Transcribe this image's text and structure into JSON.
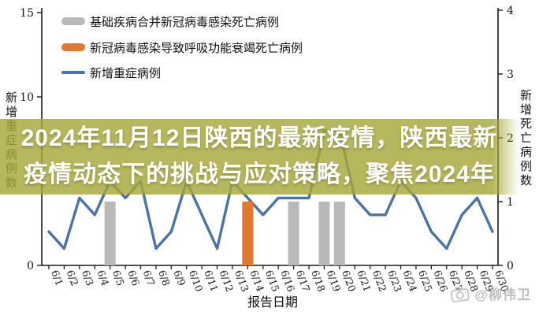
{
  "banner": {
    "line1": "2024年11月12日陕西的最新疫情，陕西最新",
    "line2": "疫情动态下的挑战与应对策略，聚焦2024年"
  },
  "watermark": {
    "icon": "weibo-camera-icon",
    "handle": "@柳伟卫"
  },
  "chart_data": {
    "type": "line+bar",
    "title": "",
    "xlabel": "报告日期",
    "legend_position": "top-left",
    "grid": false,
    "x": [
      "6/1",
      "6/2",
      "6/3",
      "6/4",
      "6/5",
      "6/6",
      "6/7",
      "6/8",
      "6/9",
      "6/10",
      "6/11",
      "6/12",
      "6/13",
      "6/14",
      "6/15",
      "6/16",
      "6/17",
      "6/18",
      "6/19",
      "6/20",
      "6/21",
      "6/22",
      "6/23",
      "6/24",
      "6/25",
      "6/26",
      "6/27",
      "6/28",
      "6/29",
      "6/30"
    ],
    "left_axis": {
      "label": "新增重症病例数",
      "ticks": [
        0,
        5,
        10,
        15
      ],
      "range": [
        0,
        15
      ]
    },
    "right_axis": {
      "label": "新增死亡病例数",
      "ticks": [
        0,
        1,
        2,
        3,
        4
      ],
      "range": [
        0,
        4
      ]
    },
    "series": [
      {
        "name": "基础疾病合并新冠病毒感染死亡病例",
        "type": "bar",
        "axis": "right",
        "color": "#b9b9b9",
        "values": [
          0,
          0,
          0,
          0,
          1,
          0,
          0,
          0,
          0,
          0,
          0,
          0,
          0,
          0,
          0,
          0,
          1,
          0,
          1,
          1,
          0,
          0,
          0,
          0,
          0,
          0,
          0,
          0,
          0,
          0
        ]
      },
      {
        "name": "新冠病毒感染导致呼吸功能衰竭死亡病例",
        "type": "bar",
        "axis": "right",
        "color": "#e2792e",
        "values": [
          0,
          0,
          0,
          0,
          0,
          0,
          0,
          0,
          0,
          0,
          0,
          0,
          0,
          1,
          0,
          0,
          0,
          0,
          0,
          0,
          0,
          0,
          0,
          0,
          0,
          0,
          0,
          0,
          0,
          0
        ]
      },
      {
        "name": "新增重症病例",
        "type": "line",
        "axis": "left",
        "color": "#4a74a8",
        "values": [
          2,
          1,
          4,
          3,
          5,
          4,
          5,
          1,
          2,
          5,
          3,
          1,
          5,
          4,
          3,
          4,
          4,
          4,
          8,
          8,
          4,
          3,
          3,
          5,
          4,
          2,
          1,
          3,
          4,
          2
        ]
      }
    ]
  }
}
